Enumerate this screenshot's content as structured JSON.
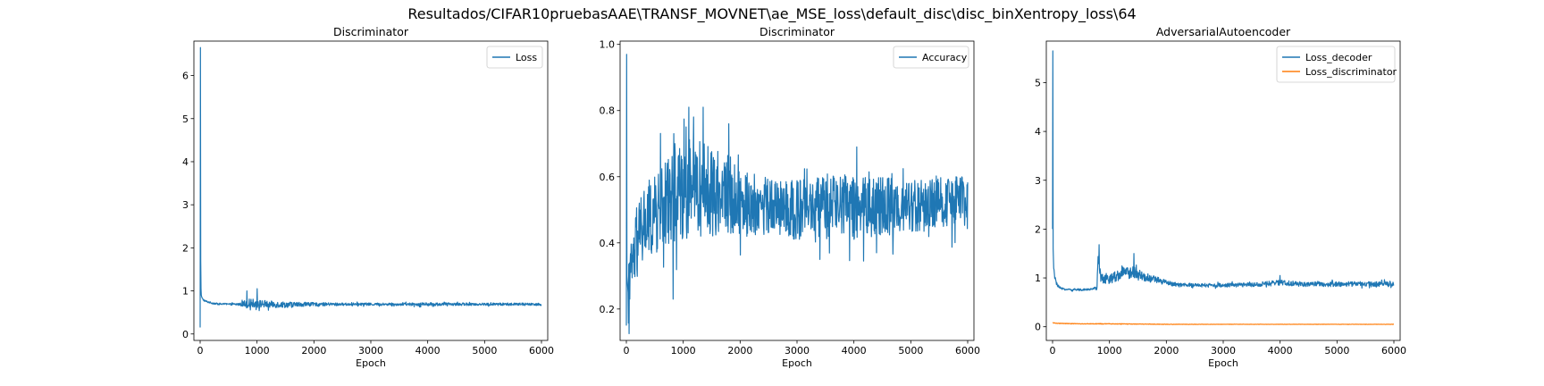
{
  "figure": {
    "suptitle": "Resultados/CIFAR10pruebasAAE\\TRANSF_MOVNET\\ae_MSE_loss\\default_disc\\disc_binXentropy_loss\\64"
  },
  "chart_data": [
    {
      "type": "line",
      "title": "Discriminator",
      "xlabel": "Epoch",
      "ylabel": "",
      "xlim": [
        -110,
        6110
      ],
      "ylim": [
        -0.15,
        6.8
      ],
      "xticks": [
        0,
        1000,
        2000,
        3000,
        4000,
        5000,
        6000
      ],
      "yticks": [
        0,
        1,
        2,
        3,
        4,
        5,
        6
      ],
      "grid": false,
      "legend": "top-right",
      "series": [
        {
          "name": "Loss",
          "color": "#1f77b4",
          "x": [
            0,
            5,
            10,
            15,
            20,
            30,
            50,
            80,
            120,
            200,
            300,
            500,
            700,
            800,
            900,
            1000,
            1100,
            1200,
            1500,
            1800,
            2000,
            2500,
            3000,
            3500,
            4000,
            4500,
            5000,
            5500,
            6000
          ],
          "values": [
            0.15,
            6.65,
            1.7,
            1.05,
            0.9,
            0.85,
            0.8,
            0.77,
            0.75,
            0.72,
            0.7,
            0.69,
            0.69,
            0.7,
            0.72,
            0.7,
            0.7,
            0.69,
            0.68,
            0.69,
            0.69,
            0.69,
            0.69,
            0.69,
            0.69,
            0.69,
            0.69,
            0.69,
            0.69
          ],
          "noise": [
            0,
            0,
            0,
            0,
            0,
            0,
            0.02,
            0.02,
            0.02,
            0.02,
            0.02,
            0.02,
            0.03,
            0.1,
            0.1,
            0.09,
            0.09,
            0.08,
            0.07,
            0.05,
            0.04,
            0.03,
            0.03,
            0.03,
            0.04,
            0.03,
            0.03,
            0.03,
            0.03
          ],
          "spikes": [
            [
              820,
              1.0
            ],
            [
              1000,
              1.05
            ],
            [
              1200,
              0.55
            ]
          ]
        }
      ]
    },
    {
      "type": "line",
      "title": "Discriminator",
      "xlabel": "Epoch",
      "ylabel": "",
      "xlim": [
        -110,
        6110
      ],
      "ylim": [
        0.105,
        1.01
      ],
      "xticks": [
        0,
        1000,
        2000,
        3000,
        4000,
        5000,
        6000
      ],
      "yticks": [
        0.2,
        0.4,
        0.6,
        0.8,
        1.0
      ],
      "grid": false,
      "legend": "top-right",
      "series": [
        {
          "name": "Accuracy",
          "color": "#1f77b4",
          "x": [
            0,
            5,
            10,
            30,
            60,
            100,
            200,
            300,
            400,
            500,
            600,
            700,
            800,
            900,
            1000,
            1100,
            1200,
            1400,
            1600,
            1800,
            2000,
            2500,
            3000,
            3500,
            4000,
            4500,
            5000,
            5500,
            6000
          ],
          "values": [
            0.15,
            0.97,
            0.3,
            0.25,
            0.28,
            0.33,
            0.4,
            0.45,
            0.47,
            0.48,
            0.5,
            0.52,
            0.55,
            0.56,
            0.56,
            0.57,
            0.57,
            0.56,
            0.55,
            0.55,
            0.52,
            0.51,
            0.5,
            0.51,
            0.51,
            0.51,
            0.51,
            0.52,
            0.52
          ],
          "noise": [
            0,
            0,
            0.06,
            0.08,
            0.09,
            0.1,
            0.11,
            0.12,
            0.12,
            0.12,
            0.13,
            0.13,
            0.15,
            0.16,
            0.16,
            0.15,
            0.15,
            0.14,
            0.13,
            0.12,
            0.1,
            0.09,
            0.09,
            0.09,
            0.1,
            0.09,
            0.08,
            0.08,
            0.08
          ],
          "spikes": [
            [
              820,
              0.23
            ],
            [
              1100,
              0.81
            ],
            [
              1350,
              0.81
            ],
            [
              1800,
              0.76
            ],
            [
              3400,
              0.35
            ],
            [
              4050,
              0.69
            ],
            [
              4400,
              0.37
            ]
          ]
        }
      ]
    },
    {
      "type": "line",
      "title": "AdversarialAutoencoder",
      "xlabel": "Epoch",
      "ylabel": "",
      "xlim": [
        -110,
        6110
      ],
      "ylim": [
        -0.28,
        5.85
      ],
      "xticks": [
        0,
        1000,
        2000,
        3000,
        4000,
        5000,
        6000
      ],
      "yticks": [
        0,
        1,
        2,
        3,
        4,
        5
      ],
      "grid": false,
      "legend": "top-right",
      "series": [
        {
          "name": "Loss_decoder",
          "color": "#1f77b4",
          "x": [
            0,
            5,
            10,
            20,
            40,
            80,
            150,
            300,
            500,
            700,
            780,
            800,
            850,
            900,
            1000,
            1200,
            1400,
            1600,
            1800,
            2000,
            2200,
            2500,
            3000,
            3500,
            4000,
            4500,
            5000,
            5500,
            6000
          ],
          "values": [
            2.0,
            5.65,
            1.6,
            1.2,
            1.0,
            0.85,
            0.78,
            0.76,
            0.76,
            0.77,
            0.8,
            1.45,
            1.0,
            0.95,
            0.98,
            1.08,
            1.12,
            1.02,
            0.97,
            0.9,
            0.86,
            0.85,
            0.85,
            0.86,
            0.9,
            0.87,
            0.87,
            0.88,
            0.88
          ],
          "noise": [
            0,
            0,
            0,
            0.05,
            0.04,
            0.03,
            0.02,
            0.02,
            0.02,
            0.02,
            0.04,
            0.1,
            0.1,
            0.1,
            0.1,
            0.12,
            0.13,
            0.1,
            0.07,
            0.05,
            0.04,
            0.04,
            0.04,
            0.04,
            0.06,
            0.05,
            0.05,
            0.05,
            0.06
          ],
          "spikes": [
            [
              820,
              1.68
            ],
            [
              1430,
              1.5
            ],
            [
              4000,
              1.05
            ]
          ]
        },
        {
          "name": "Loss_discriminator",
          "color": "#ff7f0e",
          "x": [
            0,
            100,
            500,
            1000,
            2000,
            3000,
            4000,
            5000,
            6000
          ],
          "values": [
            0.08,
            0.07,
            0.06,
            0.06,
            0.05,
            0.05,
            0.05,
            0.05,
            0.05
          ],
          "noise": [
            0.005,
            0.005,
            0.005,
            0.006,
            0.004,
            0.003,
            0.003,
            0.003,
            0.003
          ],
          "spikes": []
        }
      ]
    }
  ]
}
